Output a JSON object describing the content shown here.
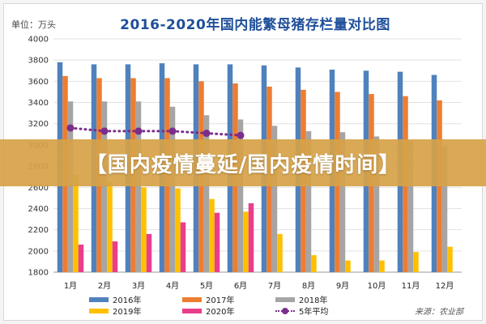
{
  "banner": {
    "text": "【国内疫情蔓延/国内疫情时间】"
  },
  "source": "来源：农业部",
  "colors": {
    "y2016": "#4f81bd",
    "y2017": "#ed7d31",
    "y2018": "#a5a5a5",
    "y2019": "#ffc000",
    "y2020": "#e83e8c",
    "avg": "#7b2d8b",
    "title": "#1f4f9a"
  },
  "chart_data": {
    "type": "bar",
    "title": "2016-2020年国内能繁母猪存栏量对比图",
    "unit_label": "单位：万头",
    "xlabel": "",
    "ylabel": "",
    "ylim": [
      1800,
      4000
    ],
    "yticks": [
      1800,
      2000,
      2200,
      2400,
      2600,
      2800,
      3000,
      3200,
      3400,
      3600,
      3800,
      4000
    ],
    "grid": true,
    "legend_position": "bottom",
    "categories": [
      "1月",
      "2月",
      "3月",
      "4月",
      "5月",
      "6月",
      "7月",
      "8月",
      "9月",
      "10月",
      "11月",
      "12月"
    ],
    "series": [
      {
        "name": "2016年",
        "type": "bar",
        "color": "#4f81bd",
        "values": [
          3780,
          3760,
          3760,
          3770,
          3760,
          3760,
          3750,
          3730,
          3710,
          3700,
          3690,
          3660
        ]
      },
      {
        "name": "2017年",
        "type": "bar",
        "color": "#ed7d31",
        "values": [
          3650,
          3630,
          3630,
          3630,
          3600,
          3580,
          3550,
          3520,
          3500,
          3480,
          3460,
          3420
        ]
      },
      {
        "name": "2018年",
        "type": "bar",
        "color": "#a5a5a5",
        "values": [
          3410,
          3410,
          3410,
          3360,
          3280,
          3240,
          3180,
          3130,
          3120,
          3080,
          3040,
          2990
        ]
      },
      {
        "name": "2019年",
        "type": "bar",
        "color": "#ffc000",
        "values": [
          2720,
          2650,
          2600,
          2590,
          2490,
          2370,
          2160,
          1960,
          1910,
          1910,
          1990,
          2040
        ]
      },
      {
        "name": "2020年",
        "type": "bar",
        "color": "#e83e8c",
        "values": [
          2060,
          2090,
          2160,
          2270,
          2360,
          2450,
          null,
          null,
          null,
          null,
          null,
          null
        ]
      },
      {
        "name": "5年平均",
        "type": "line",
        "color": "#7b2d8b",
        "values": [
          3160,
          3130,
          3130,
          3130,
          3110,
          3090,
          null,
          null,
          null,
          null,
          null,
          null
        ]
      }
    ]
  }
}
